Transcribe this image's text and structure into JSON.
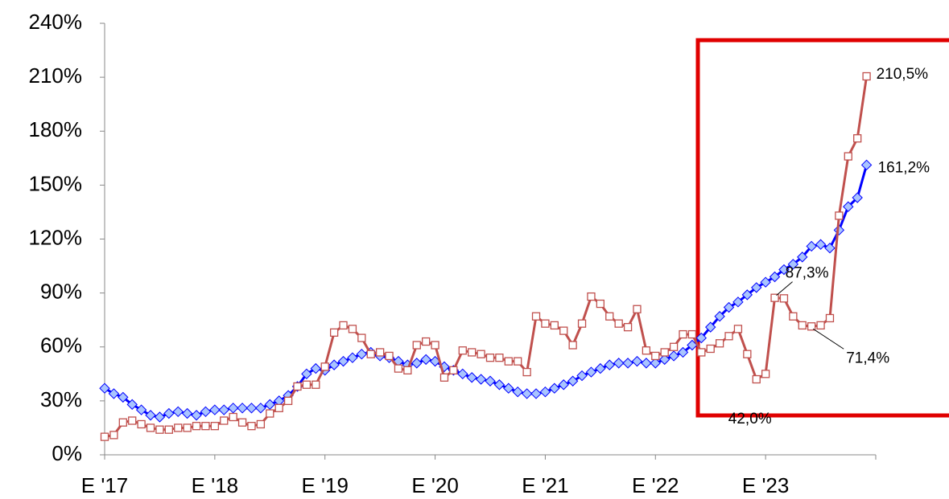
{
  "chart_data": {
    "type": "line",
    "categories": [
      "E '17",
      null,
      null,
      null,
      null,
      null,
      null,
      null,
      null,
      null,
      null,
      null,
      "E '18",
      null,
      null,
      null,
      null,
      null,
      null,
      null,
      null,
      null,
      null,
      null,
      "E '19",
      null,
      null,
      null,
      null,
      null,
      null,
      null,
      null,
      null,
      null,
      null,
      "E '20",
      null,
      null,
      null,
      null,
      null,
      null,
      null,
      null,
      null,
      null,
      null,
      "E '21",
      null,
      null,
      null,
      null,
      null,
      null,
      null,
      null,
      null,
      null,
      null,
      "E '22",
      null,
      null,
      null,
      null,
      null,
      null,
      null,
      null,
      null,
      null,
      null,
      "E '23",
      null,
      null,
      null,
      null,
      null,
      null,
      null,
      null,
      null,
      null,
      null
    ],
    "series": [
      {
        "color": "#0000ff",
        "marker_fill": "#a9c4ff",
        "marker": "diamond",
        "values": [
          37,
          34,
          32,
          28,
          25,
          22,
          21,
          23,
          24,
          23,
          22,
          24,
          25,
          25,
          26,
          26,
          26,
          26,
          28,
          30,
          33,
          38,
          45,
          48,
          47,
          50,
          52,
          54,
          56,
          57,
          55,
          54,
          52,
          50,
          51,
          53,
          52,
          49,
          47,
          45,
          43,
          42,
          41,
          39,
          37,
          35,
          34,
          34,
          35,
          37,
          39,
          41,
          44,
          46,
          48,
          50,
          51,
          51,
          52,
          51,
          51,
          53,
          55,
          57,
          61,
          65,
          71,
          77,
          82,
          85,
          89,
          93,
          96,
          99,
          103,
          106,
          110,
          116,
          117,
          115,
          125,
          138,
          143,
          161.2
        ],
        "value_labels": [
          null,
          null,
          null,
          null,
          null,
          null,
          null,
          null,
          null,
          null,
          null,
          null,
          null,
          null,
          null,
          null,
          null,
          null,
          null,
          null,
          null,
          null,
          null,
          null,
          null,
          null,
          null,
          null,
          null,
          null,
          null,
          null,
          null,
          null,
          null,
          null,
          null,
          null,
          null,
          null,
          null,
          null,
          null,
          null,
          null,
          null,
          null,
          null,
          null,
          null,
          null,
          null,
          null,
          null,
          null,
          null,
          null,
          null,
          null,
          null,
          null,
          null,
          null,
          null,
          null,
          null,
          null,
          null,
          null,
          null,
          null,
          null,
          null,
          null,
          null,
          null,
          null,
          null,
          null,
          null,
          null,
          null,
          null,
          "161,2%"
        ]
      },
      {
        "color": "#c0504d",
        "marker_fill": "#ffffff",
        "marker": "square",
        "values": [
          10,
          11,
          18,
          19,
          17,
          15,
          14,
          14,
          15,
          15,
          16,
          16,
          16,
          19,
          21,
          18,
          16,
          17,
          23,
          26,
          30,
          38,
          39,
          39,
          49,
          68,
          72,
          70,
          65,
          56,
          57,
          55,
          48,
          47,
          61,
          63,
          61,
          43,
          47,
          58,
          57,
          56,
          54,
          54,
          52,
          52,
          46,
          77,
          73,
          72,
          69,
          61,
          73,
          88,
          84,
          77,
          73,
          71,
          81,
          58,
          55,
          57,
          60,
          67,
          67,
          57,
          59,
          62,
          66,
          70,
          56,
          42.0,
          45,
          87.3,
          87,
          77,
          72,
          71.4,
          72,
          76,
          133,
          166,
          176,
          210.5
        ],
        "value_labels": [
          null,
          null,
          null,
          null,
          null,
          null,
          null,
          null,
          null,
          null,
          null,
          null,
          null,
          null,
          null,
          null,
          null,
          null,
          null,
          null,
          null,
          null,
          null,
          null,
          null,
          null,
          null,
          null,
          null,
          null,
          null,
          null,
          null,
          null,
          null,
          null,
          null,
          null,
          null,
          null,
          null,
          null,
          null,
          null,
          null,
          null,
          null,
          null,
          null,
          null,
          null,
          null,
          null,
          null,
          null,
          null,
          null,
          null,
          null,
          null,
          null,
          null,
          null,
          null,
          null,
          null,
          null,
          null,
          null,
          null,
          null,
          "42,0%",
          null,
          "87,3%",
          null,
          null,
          null,
          "71,4%",
          null,
          null,
          null,
          null,
          null,
          "210,5%"
        ]
      }
    ],
    "ylim": [
      0,
      240
    ],
    "yticks": [
      {
        "value": 0,
        "label": "0%"
      },
      {
        "value": 30,
        "label": "30%"
      },
      {
        "value": 60,
        "label": "60%"
      },
      {
        "value": 90,
        "label": "90%"
      },
      {
        "value": 120,
        "label": "120%"
      },
      {
        "value": 150,
        "label": "150%"
      },
      {
        "value": 180,
        "label": "180%"
      },
      {
        "value": 210,
        "label": "210%"
      },
      {
        "value": 240,
        "label": "240%"
      }
    ]
  }
}
